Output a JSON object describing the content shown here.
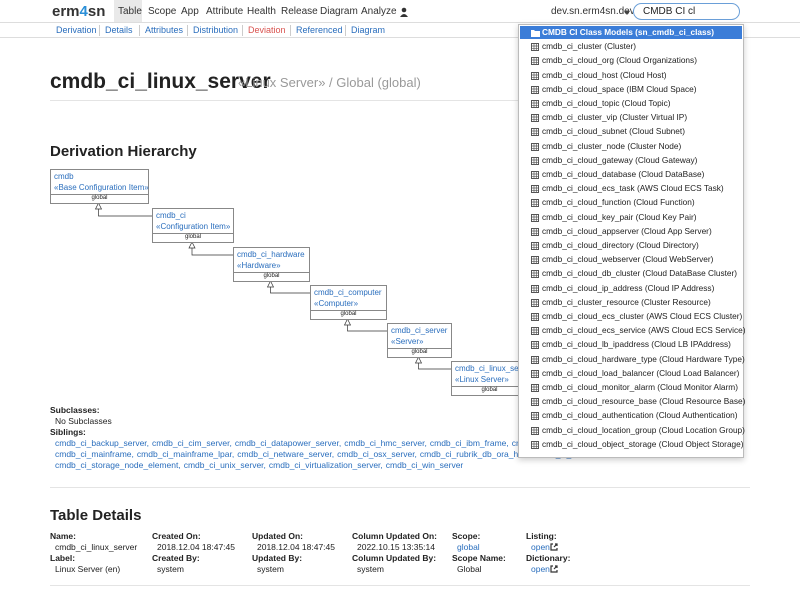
{
  "nav": {
    "logo": {
      "prefix": "erm",
      "accent": "4",
      "suffix": "sn"
    },
    "menu": [
      "Table",
      "Scope",
      "App",
      "Attribute",
      "Health",
      "Release",
      "Diagram",
      "Analyze"
    ],
    "server": "dev.sn.erm4sn.dev",
    "search": "CMDB CI cl"
  },
  "subnav": [
    "Derivation",
    "Details",
    "Attributes",
    "Distribution",
    "Deviation",
    "Referenced",
    "Diagram"
  ],
  "page": {
    "title": "cmdb_ci_linux_server",
    "subtitle": "«Linux Server» / Global (global)"
  },
  "derivation": {
    "heading": "Derivation Hierarchy",
    "nodes": [
      {
        "name": "cmdb",
        "label": "«Base Configuration Item»",
        "scope": "global"
      },
      {
        "name": "cmdb_ci",
        "label": "«Configuration Item»",
        "scope": "global"
      },
      {
        "name": "cmdb_ci_hardware",
        "label": "«Hardware»",
        "scope": "global"
      },
      {
        "name": "cmdb_ci_computer",
        "label": "«Computer»",
        "scope": "global"
      },
      {
        "name": "cmdb_ci_server",
        "label": "«Server»",
        "scope": "global"
      },
      {
        "name": "cmdb_ci_linux_server",
        "label": "«Linux Server»",
        "scope": "global"
      }
    ],
    "subclasses_label": "Subclasses:",
    "subclasses": "No Subclasses",
    "siblings_label": "Siblings:",
    "siblings": [
      [
        "cmdb_ci_backup_server,",
        "cmdb_ci_cim_server,",
        "cmdb_ci_datapower_server,",
        "cmdb_ci_hmc_server,",
        "cmdb_ci_ibm_frame,",
        "cmdb_ci_ibm_"
      ],
      [
        "cmdb_ci_mainframe,",
        "cmdb_ci_mainframe_lpar,",
        "cmdb_ci_netware_server,",
        "cmdb_ci_osx_server,",
        "cmdb_ci_rubrik_db_ora_host,",
        "cmdb_ci_"
      ],
      [
        "cmdb_ci_storage_node_element,",
        "cmdb_ci_unix_server,",
        "cmdb_ci_virtualization_server,",
        "cmdb_ci_win_server"
      ]
    ]
  },
  "details": {
    "heading": "Table Details",
    "columns": [
      [
        {
          "label": "Name:",
          "value": "cmdb_ci_linux_server"
        },
        {
          "label": "Label:",
          "value": "Linux Server (en)"
        }
      ],
      [
        {
          "label": "Created On:",
          "value": "2018.12.04 18:47:45"
        },
        {
          "label": "Created By:",
          "value": "system"
        }
      ],
      [
        {
          "label": "Updated On:",
          "value": "2018.12.04 18:47:45"
        },
        {
          "label": "Updated By:",
          "value": "system"
        }
      ],
      [
        {
          "label": "Column Updated On:",
          "value": "2022.10.15 13:35:14"
        },
        {
          "label": "Column Updated By:",
          "value": "system"
        }
      ],
      [
        {
          "label": "Scope:",
          "value": "global"
        },
        {
          "label": "Scope Name:",
          "value": "Global"
        }
      ],
      [
        {
          "label": "Listing:",
          "value": "open"
        },
        {
          "label": "Dictionary:",
          "value": "open"
        }
      ]
    ]
  },
  "dropdown": {
    "header": "CMDB CI Class Models (sn_cmdb_ci_class)",
    "items": [
      "cmdb_ci_cluster (Cluster)",
      "cmdb_ci_cloud_org (Cloud Organizations)",
      "cmdb_ci_cloud_host (Cloud Host)",
      "cmdb_ci_cloud_space (IBM Cloud Space)",
      "cmdb_ci_cloud_topic (Cloud Topic)",
      "cmdb_ci_cluster_vip (Cluster Virtual IP)",
      "cmdb_ci_cloud_subnet (Cloud Subnet)",
      "cmdb_ci_cluster_node (Cluster Node)",
      "cmdb_ci_cloud_gateway (Cloud Gateway)",
      "cmdb_ci_cloud_database (Cloud DataBase)",
      "cmdb_ci_cloud_ecs_task (AWS Cloud ECS Task)",
      "cmdb_ci_cloud_function (Cloud Function)",
      "cmdb_ci_cloud_key_pair (Cloud Key Pair)",
      "cmdb_ci_cloud_appserver (Cloud App Server)",
      "cmdb_ci_cloud_directory (Cloud Directory)",
      "cmdb_ci_cloud_webserver (Cloud WebServer)",
      "cmdb_ci_cloud_db_cluster (Cloud DataBase Cluster)",
      "cmdb_ci_cloud_ip_address (Cloud IP Address)",
      "cmdb_ci_cluster_resource (Cluster Resource)",
      "cmdb_ci_cloud_ecs_cluster (AWS Cloud ECS Cluster)",
      "cmdb_ci_cloud_ecs_service (AWS Cloud ECS Service)",
      "cmdb_ci_cloud_lb_ipaddress (Cloud LB IPAddress)",
      "cmdb_ci_cloud_hardware_type (Cloud Hardware Type)",
      "cmdb_ci_cloud_load_balancer (Cloud Load Balancer)",
      "cmdb_ci_cloud_monitor_alarm (Cloud Monitor Alarm)",
      "cmdb_ci_cloud_resource_base (Cloud Resource Base)",
      "cmdb_ci_cloud_authentication (Cloud Authentication)",
      "cmdb_ci_cloud_location_group (Cloud Location Group)",
      "cmdb_ci_cloud_object_storage (Cloud Object Storage)"
    ]
  }
}
